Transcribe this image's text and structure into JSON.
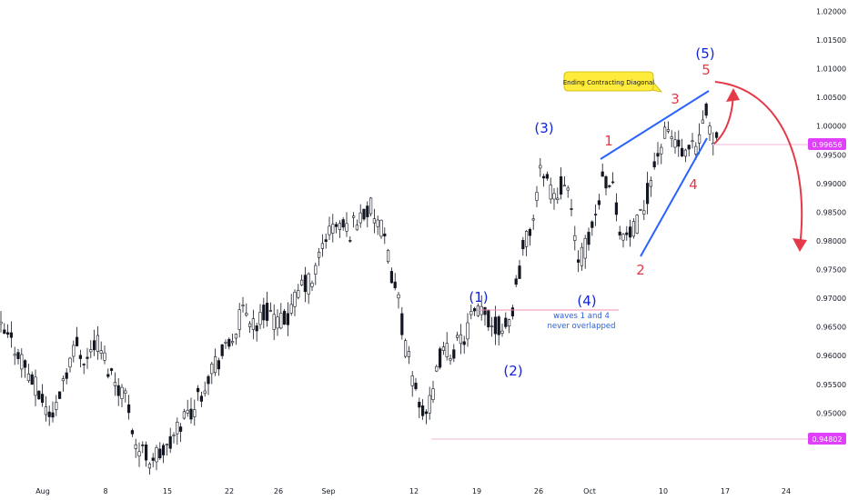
{
  "chart_data": {
    "type": "candlestick",
    "y_axis": {
      "ylim": [
        0.9415,
        1.0215
      ],
      "ticks": [
        "0.94500",
        "0.95000",
        "0.95500",
        "0.96000",
        "0.96500",
        "0.97000",
        "0.97500",
        "0.98000",
        "0.98500",
        "0.99000",
        "0.99500",
        "1.00000",
        "1.00500",
        "1.01000",
        "1.01500",
        "1.02000"
      ],
      "side": "right"
    },
    "x_axis": {
      "ticks": [
        "Aug",
        "8",
        "15",
        "22",
        "26",
        "Sep",
        "12",
        "19",
        "26",
        "Oct",
        "10",
        "17",
        "24"
      ]
    },
    "price_tags": [
      {
        "label": "0.99656",
        "value": 0.99656,
        "color": "#e040fb"
      },
      {
        "label": "0.94802",
        "value": 0.94802,
        "color": "#e040fb"
      }
    ],
    "wave_labels": [
      {
        "text": "(1)",
        "x": "2022-09-19",
        "y": 0.9712,
        "color": "#1224d8"
      },
      {
        "text": "(2)",
        "x": "2022-09-23",
        "y": 0.959,
        "color": "#1224d8"
      },
      {
        "text": "(3)",
        "x": "2022-09-26",
        "y": 1.0007,
        "color": "#1224d8"
      },
      {
        "text": "(4)",
        "x": "2022-10-04",
        "y": 0.9707,
        "color": "#1224d8"
      },
      {
        "text": "(5)",
        "x": "2022-10-14",
        "y": 1.0162,
        "color": "#1224d8"
      },
      {
        "text": "1",
        "x": "2022-10-03",
        "y": 0.9973,
        "color": "#e53948"
      },
      {
        "text": "2",
        "x": "2022-10-07",
        "y": 0.9737,
        "color": "#e53948"
      },
      {
        "text": "3",
        "x": "2022-10-12",
        "y": 1.0033,
        "color": "#e53948"
      },
      {
        "text": "4",
        "x": "2022-10-13",
        "y": 0.988,
        "color": "#e53948"
      },
      {
        "text": "5",
        "x": "2022-10-14",
        "y": 1.0098,
        "color": "#e53948"
      }
    ],
    "annotations": {
      "callout": "Ending Contracting Diagonal",
      "note_line1": "waves 1 and 4",
      "note_line2": "never overlapped"
    },
    "colors": {
      "candle": "#131722",
      "wave_blue": "#1224d8",
      "wave_red": "#e53948",
      "trendline": "#2962ff",
      "level_line": "#f06292",
      "callout_fill": "#ffeb3b",
      "arrow": "#e53948"
    },
    "grid": false
  }
}
